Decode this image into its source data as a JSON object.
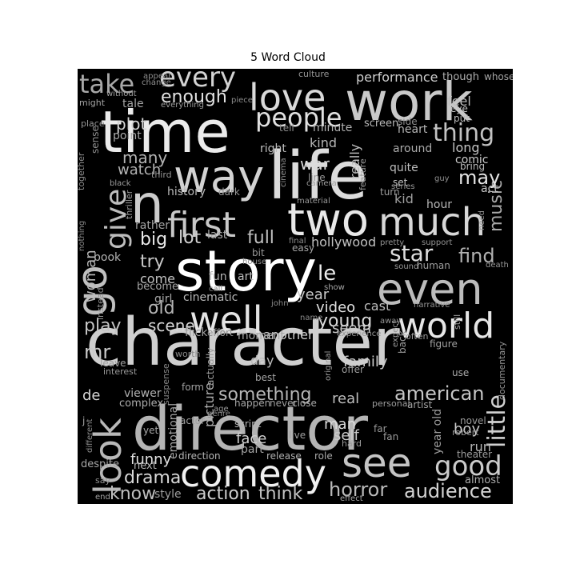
{
  "title": "5 Word Cloud",
  "background": "#000000",
  "words": [
    {
      "text": "character",
      "color": "#cfcfcf"
    },
    {
      "text": "director",
      "color": "#b4b4b4"
    },
    {
      "text": "story",
      "color": "#ffffff"
    },
    {
      "text": "life",
      "color": "#dcdcdc"
    },
    {
      "text": "time",
      "color": "#ebebeb"
    },
    {
      "text": "work",
      "color": "#c9c9c9"
    },
    {
      "text": "way",
      "color": "#d2d2d2"
    },
    {
      "text": "two",
      "color": "#e8e8e8"
    },
    {
      "text": "much",
      "color": "#d7d7d7"
    },
    {
      "text": "even",
      "color": "#bcbcbc"
    },
    {
      "text": "see",
      "color": "#c4c4c4"
    },
    {
      "text": "comedy",
      "color": "#f0f0f0"
    },
    {
      "text": "well",
      "color": "#e3e3e3"
    },
    {
      "text": "love",
      "color": "#d9d9d9"
    },
    {
      "text": "first",
      "color": "#c8c8c8"
    },
    {
      "text": "go",
      "color": "#c0c0c0"
    },
    {
      "text": "n",
      "color": "#cccccc"
    },
    {
      "text": "look",
      "color": "#b8b8b8"
    },
    {
      "text": "world",
      "color": "#e6e6e6"
    },
    {
      "text": "every",
      "color": "#d3d3d3"
    },
    {
      "text": "people",
      "color": "#e0e0e0"
    },
    {
      "text": "give",
      "color": "#bdbdbd"
    },
    {
      "text": "take",
      "color": "#a8a8a8"
    },
    {
      "text": "thing",
      "color": "#c2c2c2"
    },
    {
      "text": "good",
      "color": "#cbcbcb"
    },
    {
      "text": "little",
      "color": "#d0d0d0"
    },
    {
      "text": "something",
      "color": "#b6b6b6"
    },
    {
      "text": "american",
      "color": "#c6c6c6"
    },
    {
      "text": "audience",
      "color": "#d5d5d5"
    },
    {
      "text": "horror",
      "color": "#bababa"
    },
    {
      "text": "action",
      "color": "#cecece"
    },
    {
      "text": "think",
      "color": "#c3c3c3"
    },
    {
      "text": "drama",
      "color": "#d8d8d8"
    },
    {
      "text": "enough",
      "color": "#e2e2e2"
    },
    {
      "text": "star",
      "color": "#dedede"
    },
    {
      "text": "find",
      "color": "#b0b0b0"
    },
    {
      "text": "music",
      "color": "#a9a9a9"
    },
    {
      "text": "may",
      "color": "#e4e4e4"
    },
    {
      "text": "full",
      "color": "#bfbfbf"
    },
    {
      "text": "lot",
      "color": "#d1d1d1"
    },
    {
      "text": "big",
      "color": "#e9e9e9"
    },
    {
      "text": "young",
      "color": "#dadada"
    },
    {
      "text": "play",
      "color": "#c5c5c5"
    },
    {
      "text": "scene",
      "color": "#d6d6d6"
    },
    {
      "text": "old",
      "color": "#b5b5b5"
    },
    {
      "text": "mr",
      "color": "#cacaca"
    },
    {
      "text": "know",
      "color": "#bebebe"
    },
    {
      "text": "funny",
      "color": "#e1e1e1"
    },
    {
      "text": "try",
      "color": "#c7c7c7"
    },
    {
      "text": "le",
      "color": "#eeeeee"
    },
    {
      "text": "many",
      "color": "#b3b3b3"
    },
    {
      "text": "plot",
      "color": "#d4d4d4"
    },
    {
      "text": "family",
      "color": "#cdcdcd"
    },
    {
      "text": "hollywood",
      "color": "#c1c1c1"
    },
    {
      "text": "woman",
      "color": "#b9b9b9"
    },
    {
      "text": "performance",
      "color": "#cfcfcf"
    },
    {
      "text": "war",
      "color": "#d9d9d9"
    },
    {
      "text": "really",
      "color": "#bcbcbc"
    },
    {
      "text": "year",
      "color": "#c8c8c8"
    },
    {
      "text": "video",
      "color": "#e0e0e0"
    },
    {
      "text": "seem",
      "color": "#c6c6c6"
    },
    {
      "text": "face",
      "color": "#d1d1d1"
    },
    {
      "text": "self",
      "color": "#c9c9c9"
    },
    {
      "text": "man",
      "color": "#dddddd"
    },
    {
      "text": "real",
      "color": "#bdbdbd"
    },
    {
      "text": "boy",
      "color": "#cbcbcb"
    },
    {
      "text": "history",
      "color": "#b8b8b8"
    },
    {
      "text": "watch",
      "color": "#b4b4b4"
    },
    {
      "text": "come",
      "color": "#c0c0c0"
    },
    {
      "text": "another",
      "color": "#cfcfcf"
    },
    {
      "text": "moment",
      "color": "#a6a6a6"
    },
    {
      "text": "cinematic",
      "color": "#b9b9b9"
    },
    {
      "text": "picture",
      "color": "#aeaeae"
    },
    {
      "text": "de",
      "color": "#d6d6d6"
    },
    {
      "text": "day",
      "color": "#bbbbbb"
    },
    {
      "text": "long",
      "color": "#c3c3c3"
    },
    {
      "text": "comic",
      "color": "#cccccc"
    },
    {
      "text": "act",
      "color": "#c7c7c7"
    },
    {
      "text": "cast",
      "color": "#bcbcbc"
    },
    {
      "text": "kind",
      "color": "#b6b6b6"
    },
    {
      "text": "around",
      "color": "#aaaaaa"
    },
    {
      "text": "minute",
      "color": "#b1b1b1"
    },
    {
      "text": "right",
      "color": "#bebebe"
    },
    {
      "text": "heart",
      "color": "#b5b5b5"
    },
    {
      "text": "feel",
      "color": "#bfbfbf"
    },
    {
      "text": "tale",
      "color": "#a4a4a4"
    },
    {
      "text": "girl",
      "color": "#a7a7a7"
    },
    {
      "text": "point",
      "color": "#a9a9a9"
    },
    {
      "text": "rather",
      "color": "#a3a3a3"
    },
    {
      "text": "last",
      "color": "#aaaaaa"
    },
    {
      "text": "book",
      "color": "#b2b2b2"
    },
    {
      "text": "fun",
      "color": "#b3b3b3"
    },
    {
      "text": "art",
      "color": "#c0c0c0"
    },
    {
      "text": "hour",
      "color": "#b7b7b7"
    },
    {
      "text": "kid",
      "color": "#9f9f9f"
    },
    {
      "text": "set",
      "color": "#c2c2c2"
    },
    {
      "text": "quite",
      "color": "#bdbdbd"
    },
    {
      "text": "screen",
      "color": "#b9b9b9"
    },
    {
      "text": "though",
      "color": "#aeaeae"
    },
    {
      "text": "whose",
      "color": "#a2a2a2"
    },
    {
      "text": "put",
      "color": "#bcbcbc"
    },
    {
      "text": "eye",
      "color": "#c5c5c5"
    },
    {
      "text": "bring",
      "color": "#b8b8b8"
    },
    {
      "text": "viewer",
      "color": "#b0b0b0"
    },
    {
      "text": "emotional",
      "color": "#a5a5a5"
    },
    {
      "text": "complex",
      "color": "#ababab"
    },
    {
      "text": "next",
      "color": "#b4b4b4"
    },
    {
      "text": "despite",
      "color": "#a8a8a8"
    },
    {
      "text": "direction",
      "color": "#b6b6b6"
    },
    {
      "text": "release",
      "color": "#b0b0b0"
    },
    {
      "text": "role",
      "color": "#a9a9a9"
    },
    {
      "text": "theater",
      "color": "#9d9d9d"
    },
    {
      "text": "almost",
      "color": "#ababab"
    },
    {
      "text": "run",
      "color": "#b3b3b3"
    },
    {
      "text": "style",
      "color": "#9c9c9c"
    },
    {
      "text": "end",
      "color": "#a1a1a1"
    },
    {
      "text": "effect",
      "color": "#a6a6a6"
    },
    {
      "text": "part",
      "color": "#a4a4a4"
    },
    {
      "text": "script",
      "color": "#b2b2b2"
    },
    {
      "text": "happen",
      "color": "#a7a7a7"
    },
    {
      "text": "live",
      "color": "#9f9f9f"
    },
    {
      "text": "close",
      "color": "#aaaaaa"
    },
    {
      "text": "actually",
      "color": "#9e9e9e"
    },
    {
      "text": "best",
      "color": "#a3a3a3"
    },
    {
      "text": "form",
      "color": "#a0a0a0"
    },
    {
      "text": "age",
      "color": "#9b9b9b"
    },
    {
      "text": "hard",
      "color": "#9a9a9a"
    },
    {
      "text": "far",
      "color": "#989898"
    },
    {
      "text": "fan",
      "color": "#999999"
    },
    {
      "text": "personal",
      "color": "#9e9e9e"
    },
    {
      "text": "artist",
      "color": "#a1a1a1"
    },
    {
      "text": "novel",
      "color": "#9a9a9a"
    },
    {
      "text": "robert",
      "color": "#979797"
    },
    {
      "text": "documentary",
      "color": "#959595"
    },
    {
      "text": "figure",
      "color": "#a0a0a0"
    },
    {
      "text": "use",
      "color": "#aaaaaa"
    },
    {
      "text": "back",
      "color": "#9c9c9c"
    },
    {
      "text": "expect",
      "color": "#969696"
    },
    {
      "text": "original",
      "color": "#999999"
    },
    {
      "text": "offer",
      "color": "#9d9d9d"
    },
    {
      "text": "experience",
      "color": "#989898"
    },
    {
      "text": "often",
      "color": "#9b9b9b"
    },
    {
      "text": "still",
      "color": "#9f9f9f"
    },
    {
      "text": "away",
      "color": "#949494"
    },
    {
      "text": "narrative",
      "color": "#939393"
    },
    {
      "text": "death",
      "color": "#979797"
    },
    {
      "text": "human",
      "color": "#9d9d9d"
    },
    {
      "text": "sound",
      "color": "#969696"
    },
    {
      "text": "support",
      "color": "#929292"
    },
    {
      "text": "need",
      "color": "#959595"
    },
    {
      "text": "pretty",
      "color": "#939393"
    },
    {
      "text": "material",
      "color": "#989898"
    },
    {
      "text": "feature",
      "color": "#9a9a9a"
    },
    {
      "text": "turn",
      "color": "#9c9c9c"
    },
    {
      "text": "series",
      "color": "#979797"
    },
    {
      "text": "guy",
      "color": "#919191"
    },
    {
      "text": "camera",
      "color": "#9e9e9e"
    },
    {
      "text": "line",
      "color": "#999999"
    },
    {
      "text": "cinema",
      "color": "#8f8f8f"
    },
    {
      "text": "tell",
      "color": "#8e8e8e"
    },
    {
      "text": "culture",
      "color": "#969696"
    },
    {
      "text": "side",
      "color": "#8d8d8d"
    },
    {
      "text": "piece",
      "color": "#8c8c8c"
    },
    {
      "text": "appear",
      "color": "#8b8b8b"
    },
    {
      "text": "change",
      "color": "#929292"
    },
    {
      "text": "without",
      "color": "#a0a0a0"
    },
    {
      "text": "might",
      "color": "#a2a2a2"
    },
    {
      "text": "everything",
      "color": "#9b9b9b"
    },
    {
      "text": "place",
      "color": "#959595"
    },
    {
      "text": "sense",
      "color": "#8f8f8f"
    },
    {
      "text": "together",
      "color": "#8e8e8e"
    },
    {
      "text": "black",
      "color": "#9d9d9d"
    },
    {
      "text": "third",
      "color": "#939393"
    },
    {
      "text": "dark",
      "color": "#979797"
    },
    {
      "text": "thriller",
      "color": "#9a9a9a"
    },
    {
      "text": "nothing",
      "color": "#8c8c8c"
    },
    {
      "text": "bit",
      "color": "#969696"
    },
    {
      "text": "easy",
      "color": "#a4a4a4"
    },
    {
      "text": "final",
      "color": "#8d8d8d"
    },
    {
      "text": "house",
      "color": "#8b8b8b"
    },
    {
      "text": "call",
      "color": "#8a8a8a"
    },
    {
      "text": "become",
      "color": "#a5a5a5"
    },
    {
      "text": "instead",
      "color": "#8f8f8f"
    },
    {
      "text": "john",
      "color": "#898989"
    },
    {
      "text": "name",
      "color": "#8a8a8a"
    },
    {
      "text": "show",
      "color": "#a3a3a3"
    },
    {
      "text": "flick",
      "color": "#9e9e9e"
    },
    {
      "text": "effort",
      "color": "#919191"
    },
    {
      "text": "worth",
      "color": "#888888"
    },
    {
      "text": "leave",
      "color": "#a0a0a0"
    },
    {
      "text": "interest",
      "color": "#999999"
    },
    {
      "text": "suspense",
      "color": "#878787"
    },
    {
      "text": "genre",
      "color": "#8c8c8c"
    },
    {
      "text": "actor",
      "color": "#a1a1a1"
    },
    {
      "text": "j",
      "color": "#a6a6a6"
    },
    {
      "text": "different",
      "color": "#8e8e8e"
    },
    {
      "text": "yet",
      "color": "#a7a7a7"
    },
    {
      "text": "never",
      "color": "#9f9f9f"
    },
    {
      "text": "say",
      "color": "#929292"
    },
    {
      "text": "year old",
      "color": "#9c9c9c"
    }
  ]
}
